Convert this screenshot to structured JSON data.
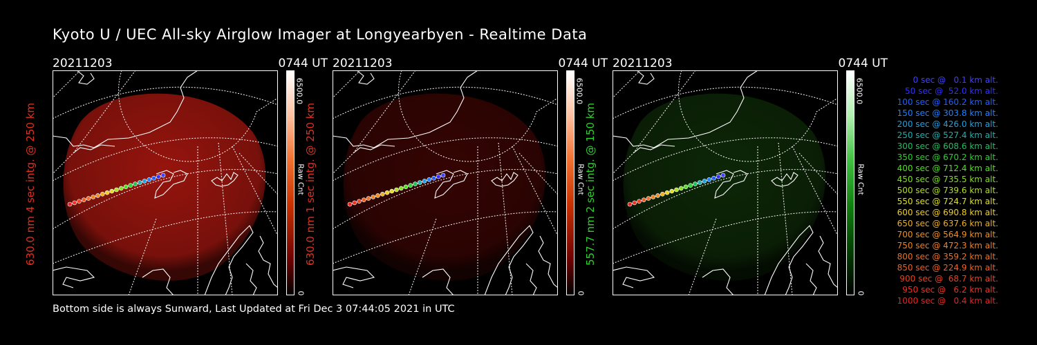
{
  "title": "Kyoto U / UEC All-sky Airglow Imager at Longyearbyen - Realtime Data",
  "footer": "Bottom side is always Sunward, Last Updated at Fri Dec  3 07:44:05 2021 in UTC",
  "panels": [
    {
      "date": "20211203",
      "time": "0744 UT",
      "ylabel": "630.0 nm 4 sec intg. @ 250 km",
      "color": "#e03020",
      "glow": "#b01810",
      "glow_opacity": 0.85,
      "cb_max": "6500.0",
      "cb_label": "Raw Cnt",
      "cb_min": "0"
    },
    {
      "date": "20211203",
      "time": "0744 UT",
      "ylabel": "630.0 nm 1 sec intg. @ 250 km",
      "color": "#e03020",
      "glow": "#3a0503",
      "glow_opacity": 0.9,
      "cb_max": "6500.0",
      "cb_label": "Raw Cnt",
      "cb_min": "0"
    },
    {
      "date": "20211203",
      "time": "0744 UT",
      "ylabel": "557.7 nm 2 sec intg. @ 150 km",
      "color": "#30d030",
      "glow": "#0e2a08",
      "glow_opacity": 0.9,
      "cb_max": "6500.0",
      "cb_label": "Raw Cnt",
      "cb_min": "0"
    }
  ],
  "legend": [
    {
      "text": "0 sec @   0.1 km alt.",
      "color": "#4040ff"
    },
    {
      "text": "50 sec @  52.0 km alt.",
      "color": "#3030ff"
    },
    {
      "text": "100 sec @ 160.2 km alt.",
      "color": "#2060ff"
    },
    {
      "text": "150 sec @ 303.8 km alt.",
      "color": "#2080ff"
    },
    {
      "text": "200 sec @ 426.0 km alt.",
      "color": "#20a0e0"
    },
    {
      "text": "250 sec @ 527.4 km alt.",
      "color": "#20b0b0"
    },
    {
      "text": "300 sec @ 608.6 km alt.",
      "color": "#20c060"
    },
    {
      "text": "350 sec @ 670.2 km alt.",
      "color": "#30d030"
    },
    {
      "text": "400 sec @ 712.4 km alt.",
      "color": "#50e020"
    },
    {
      "text": "450 sec @ 735.5 km alt.",
      "color": "#80e020"
    },
    {
      "text": "500 sec @ 739.6 km alt.",
      "color": "#b0e020"
    },
    {
      "text": "550 sec @ 724.7 km alt.",
      "color": "#e0e020"
    },
    {
      "text": "600 sec @ 690.8 km alt.",
      "color": "#f0d020"
    },
    {
      "text": "650 sec @ 637.6 km alt.",
      "color": "#f0b020"
    },
    {
      "text": "700 sec @ 564.9 km alt.",
      "color": "#f09020"
    },
    {
      "text": "750 sec @ 472.3 km alt.",
      "color": "#f08020"
    },
    {
      "text": "800 sec @ 359.2 km alt.",
      "color": "#f07020"
    },
    {
      "text": "850 sec @ 224.9 km alt.",
      "color": "#f06020"
    },
    {
      "text": "900 sec @  68.7 km alt.",
      "color": "#f04020"
    },
    {
      "text": "950 sec @   6.2 km alt.",
      "color": "#f03020"
    },
    {
      "text": "1000 sec @   0.4 km alt.",
      "color": "#f02020"
    }
  ]
}
